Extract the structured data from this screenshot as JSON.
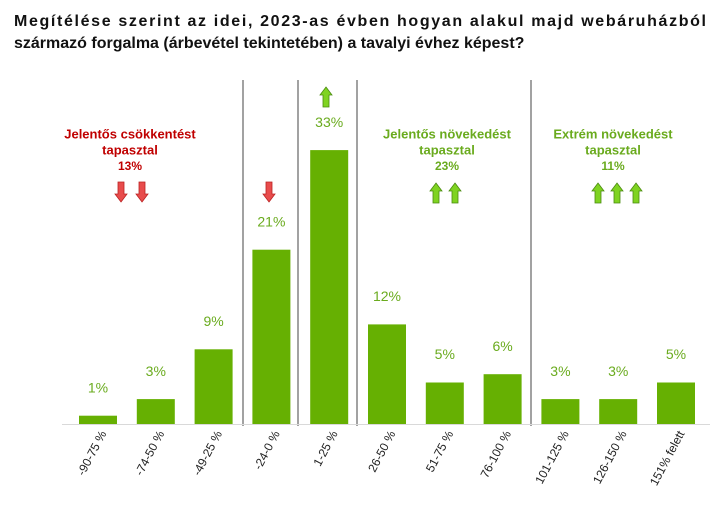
{
  "chart_data": {
    "type": "bar",
    "title": [
      "Megítélése szerint az idei, 2023-as évben hogyan alakul majd webáruházból",
      "származó forgalma (árbevétel tekintetében) a tavalyi évhez képest?"
    ],
    "categories": [
      "-90-75 %",
      "-74-50 %",
      "-49-25 %",
      "-24-0 %",
      "1-25 %",
      "26-50 %",
      "51-75 %",
      "76-100 %",
      "101-125 %",
      "126-150 %",
      "151% felett"
    ],
    "values": [
      1,
      3,
      9,
      21,
      33,
      12,
      5,
      6,
      3,
      3,
      5
    ],
    "value_labels": [
      "1%",
      "3%",
      "9%",
      "21%",
      "33%",
      "12%",
      "5%",
      "6%",
      "3%",
      "3%",
      "5%"
    ],
    "color": "#66b002",
    "annotations": [
      {
        "text": [
          "Jelentős csökkentést",
          "tapasztal",
          "13%"
        ],
        "color": "#c00000"
      },
      {
        "text": [
          "Jelentős növekedést",
          "tapasztal",
          "23%"
        ],
        "color": "#6aab1e"
      },
      {
        "text": [
          "Extrém növekedést",
          "tapasztal",
          "11%"
        ],
        "color": "#6aab1e"
      }
    ]
  }
}
